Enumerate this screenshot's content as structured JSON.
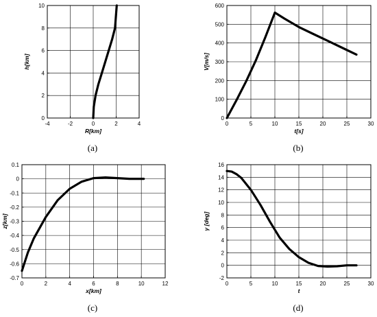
{
  "figure": {
    "captions": [
      "(a)",
      "(b)",
      "(c)",
      "(d)"
    ]
  },
  "chart_data": [
    {
      "type": "line",
      "xlabel": "R[km]",
      "ylabel": "h[km]",
      "xlim": [
        -4,
        4
      ],
      "ylim": [
        0,
        10
      ],
      "xticks": [
        "-4",
        "-2",
        "0",
        "2",
        "4"
      ],
      "yticks": [
        "0",
        "2",
        "4",
        "6",
        "8",
        "10"
      ],
      "grid": true,
      "series": [
        {
          "x": [
            0,
            0.05,
            0.2,
            0.45,
            0.75,
            1.05,
            1.35,
            1.65,
            1.9,
            2.05
          ],
          "y": [
            0,
            1,
            2,
            3,
            4,
            5,
            6,
            7,
            8,
            10
          ]
        }
      ]
    },
    {
      "type": "line",
      "xlabel": "t[s]",
      "ylabel": "V[m/s]",
      "xlim": [
        0,
        30
      ],
      "ylim": [
        0,
        600
      ],
      "xticks": [
        "0",
        "5",
        "10",
        "15",
        "20",
        "25",
        "30"
      ],
      "yticks": [
        "0",
        "100",
        "200",
        "300",
        "400",
        "500",
        "600"
      ],
      "grid": true,
      "series": [
        {
          "x": [
            0,
            2,
            4,
            6,
            8,
            10,
            12,
            15,
            18,
            21,
            24,
            27
          ],
          "y": [
            0,
            95,
            195,
            305,
            430,
            562,
            530,
            485,
            448,
            412,
            375,
            338
          ]
        }
      ]
    },
    {
      "type": "line",
      "xlabel": "x[km]",
      "ylabel": "z[km]",
      "xlim": [
        0,
        12
      ],
      "ylim": [
        -0.7,
        0.1
      ],
      "xticks": [
        "0",
        "2",
        "4",
        "6",
        "8",
        "10",
        "12"
      ],
      "yticks": [
        "-0.7",
        "-0.6",
        "-0.5",
        "-0.4",
        "-0.3",
        "-0.2",
        "-0.1",
        "0",
        "0.1"
      ],
      "grid": true,
      "series": [
        {
          "x": [
            0,
            0.5,
            1,
            2,
            3,
            4,
            5,
            6,
            7,
            8,
            9,
            10.2
          ],
          "y": [
            -0.65,
            -0.52,
            -0.42,
            -0.27,
            -0.15,
            -0.07,
            -0.02,
            0.005,
            0.01,
            0.005,
            0,
            0
          ]
        }
      ]
    },
    {
      "type": "line",
      "xlabel": "t",
      "ylabel": "γ [deg]",
      "xlim": [
        0,
        30
      ],
      "ylim": [
        -2,
        16
      ],
      "xticks": [
        "0",
        "5",
        "10",
        "15",
        "20",
        "25",
        "30"
      ],
      "yticks": [
        "-2",
        "0",
        "2",
        "4",
        "6",
        "8",
        "10",
        "12",
        "14",
        "16"
      ],
      "grid": true,
      "series": [
        {
          "x": [
            0,
            1,
            2,
            3,
            5,
            7,
            9,
            11,
            13,
            15,
            17,
            19,
            21,
            23,
            25,
            27
          ],
          "y": [
            15,
            14.9,
            14.5,
            13.9,
            12,
            9.6,
            6.9,
            4.4,
            2.6,
            1.3,
            0.4,
            -0.1,
            -0.2,
            -0.15,
            0,
            0
          ]
        }
      ]
    }
  ]
}
